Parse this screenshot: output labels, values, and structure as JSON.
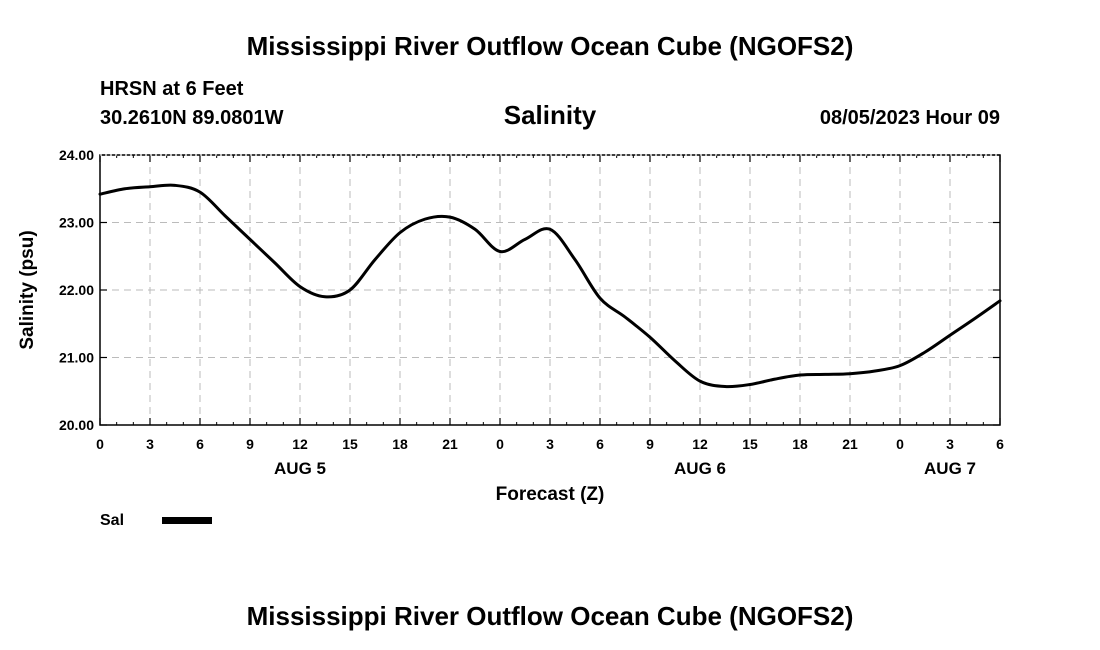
{
  "header": {
    "main_title": "Mississippi River Outflow Ocean Cube (NGOFS2)",
    "station": "HRSN at 6 Feet",
    "coords": "30.2610N  89.0801W",
    "datetime": "08/05/2023 Hour 09"
  },
  "footer": {
    "main_title": "Mississippi River Outflow Ocean Cube (NGOFS2)"
  },
  "colors": {
    "line": "#000000",
    "grid": "#bbbbbb",
    "axis": "#000000"
  },
  "chart_data": {
    "type": "line",
    "title": "Salinity",
    "xlabel": "Forecast (Z)",
    "ylabel": "Salinity (psu)",
    "xlim": [
      0,
      54
    ],
    "ylim": [
      20,
      24
    ],
    "x_tick_values": [
      0,
      3,
      6,
      9,
      12,
      15,
      18,
      21,
      24,
      27,
      30,
      33,
      36,
      39,
      42,
      45,
      48,
      51,
      54
    ],
    "x_tick_labels": [
      "0",
      "3",
      "6",
      "9",
      "12",
      "15",
      "18",
      "21",
      "0",
      "3",
      "6",
      "9",
      "12",
      "15",
      "18",
      "21",
      "0",
      "3",
      "6"
    ],
    "y_tick_values": [
      20,
      21,
      22,
      23,
      24
    ],
    "y_tick_labels": [
      "20.00",
      "21.00",
      "22.00",
      "23.00",
      "24.00"
    ],
    "day_labels": [
      {
        "x": 12,
        "label": "AUG 5"
      },
      {
        "x": 36,
        "label": "AUG 6"
      },
      {
        "x": 51,
        "label": "AUG 7"
      }
    ],
    "grid": true,
    "legend_position": "bottom-left",
    "series": [
      {
        "name": "Sal",
        "x": [
          0,
          1.5,
          3,
          4.5,
          6,
          7.5,
          9,
          10.5,
          12,
          13.5,
          15,
          16.5,
          18,
          19.5,
          21,
          22.5,
          24,
          25.5,
          27,
          28.5,
          30,
          31.5,
          33,
          34.5,
          36,
          37.5,
          39,
          40.5,
          42,
          43.5,
          45,
          46.5,
          48,
          49.5,
          51,
          52.5,
          54
        ],
        "values": [
          23.42,
          23.5,
          23.53,
          23.55,
          23.45,
          23.1,
          22.75,
          22.4,
          22.05,
          21.9,
          22.0,
          22.45,
          22.85,
          23.05,
          23.08,
          22.9,
          22.57,
          22.75,
          22.9,
          22.45,
          21.88,
          21.6,
          21.3,
          20.95,
          20.65,
          20.57,
          20.6,
          20.68,
          20.74,
          20.75,
          20.76,
          20.8,
          20.88,
          21.08,
          21.33,
          21.58,
          21.84
        ]
      }
    ]
  }
}
